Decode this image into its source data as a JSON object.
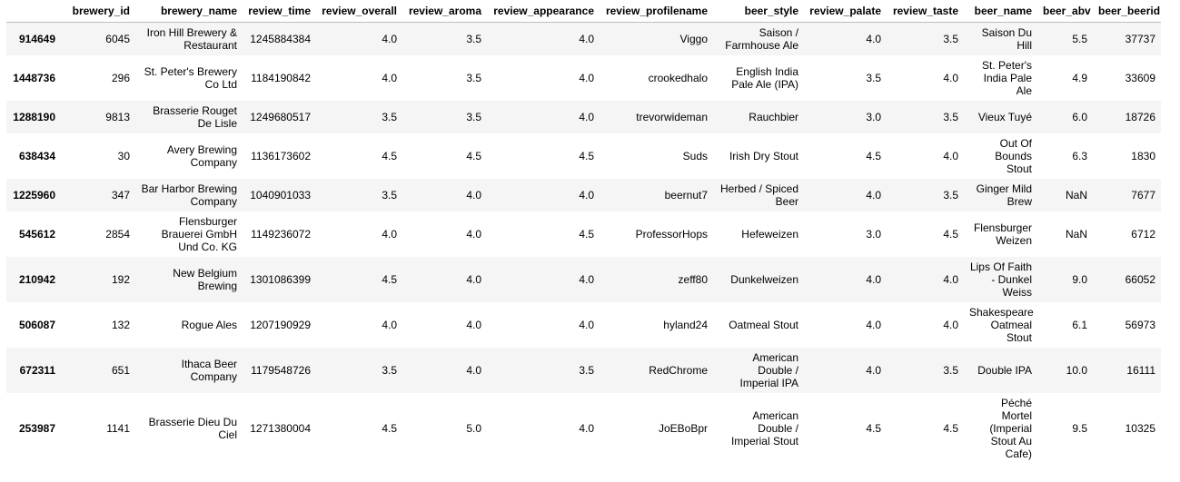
{
  "table": {
    "index_header": "",
    "columns": [
      "brewery_id",
      "brewery_name",
      "review_time",
      "review_overall",
      "review_aroma",
      "review_appearance",
      "review_profilename",
      "beer_style",
      "review_palate",
      "review_taste",
      "beer_name",
      "beer_abv",
      "beer_beerid"
    ],
    "rows": [
      {
        "index": "914649",
        "cells": [
          "6045",
          "Iron Hill Brewery & Restaurant",
          "1245884384",
          "4.0",
          "3.5",
          "4.0",
          "Viggo",
          "Saison / Farmhouse Ale",
          "4.0",
          "3.5",
          "Saison Du Hill",
          "5.5",
          "37737"
        ]
      },
      {
        "index": "1448736",
        "cells": [
          "296",
          "St. Peter's Brewery Co Ltd",
          "1184190842",
          "4.0",
          "3.5",
          "4.0",
          "crookedhalo",
          "English India Pale Ale (IPA)",
          "3.5",
          "4.0",
          "St. Peter's India Pale Ale",
          "4.9",
          "33609"
        ]
      },
      {
        "index": "1288190",
        "cells": [
          "9813",
          "Brasserie Rouget De Lisle",
          "1249680517",
          "3.5",
          "3.5",
          "4.0",
          "trevorwideman",
          "Rauchbier",
          "3.0",
          "3.5",
          "Vieux Tuyé",
          "6.0",
          "18726"
        ]
      },
      {
        "index": "638434",
        "cells": [
          "30",
          "Avery Brewing Company",
          "1136173602",
          "4.5",
          "4.5",
          "4.5",
          "Suds",
          "Irish Dry Stout",
          "4.5",
          "4.0",
          "Out Of Bounds Stout",
          "6.3",
          "1830"
        ]
      },
      {
        "index": "1225960",
        "cells": [
          "347",
          "Bar Harbor Brewing Company",
          "1040901033",
          "3.5",
          "4.0",
          "4.0",
          "beernut7",
          "Herbed / Spiced Beer",
          "4.0",
          "3.5",
          "Ginger Mild Brew",
          "NaN",
          "7677"
        ]
      },
      {
        "index": "545612",
        "cells": [
          "2854",
          "Flensburger Brauerei GmbH Und Co. KG",
          "1149236072",
          "4.0",
          "4.0",
          "4.5",
          "ProfessorHops",
          "Hefeweizen",
          "3.0",
          "4.5",
          "Flensburger Weizen",
          "NaN",
          "6712"
        ]
      },
      {
        "index": "210942",
        "cells": [
          "192",
          "New Belgium Brewing",
          "1301086399",
          "4.5",
          "4.0",
          "4.0",
          "zeff80",
          "Dunkelweizen",
          "4.0",
          "4.0",
          "Lips Of Faith - Dunkel Weiss",
          "9.0",
          "66052"
        ]
      },
      {
        "index": "506087",
        "cells": [
          "132",
          "Rogue Ales",
          "1207190929",
          "4.0",
          "4.0",
          "4.0",
          "hyland24",
          "Oatmeal Stout",
          "4.0",
          "4.0",
          "Shakespeare Oatmeal Stout",
          "6.1",
          "56973"
        ]
      },
      {
        "index": "672311",
        "cells": [
          "651",
          "Ithaca Beer Company",
          "1179548726",
          "3.5",
          "4.0",
          "3.5",
          "RedChrome",
          "American Double / Imperial IPA",
          "4.0",
          "3.5",
          "Double IPA",
          "10.0",
          "16111"
        ]
      },
      {
        "index": "253987",
        "cells": [
          "1141",
          "Brasserie Dieu Du Ciel",
          "1271380004",
          "4.5",
          "5.0",
          "4.0",
          "JoEBoBpr",
          "American Double / Imperial Stout",
          "4.5",
          "4.5",
          "Péché Mortel (Imperial Stout Au Cafe)",
          "9.5",
          "10325"
        ]
      }
    ]
  }
}
